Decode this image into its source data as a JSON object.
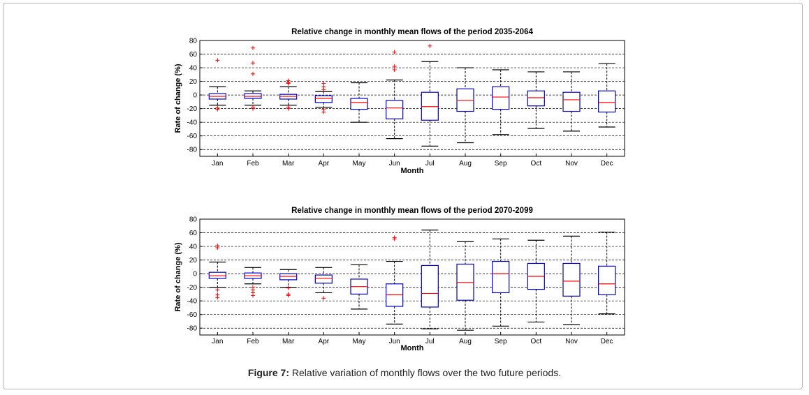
{
  "caption": {
    "label": "Figure 7:",
    "text": " Relative variation of monthly flows over the two future periods."
  },
  "colors": {
    "box": "#0000cc",
    "median": "#ff0000",
    "outlier": "#ff0000",
    "whisker": "#000000",
    "grid": "#000000"
  },
  "chart_data": [
    {
      "type": "box",
      "title": "Relative change in monthly mean flows of the period 2035-2064",
      "xlabel": "Month",
      "ylabel": "Rate of change (%)",
      "ylim": [
        -90,
        80
      ],
      "yticks": [
        -80,
        -60,
        -40,
        -20,
        0,
        20,
        40,
        60,
        80
      ],
      "grid": "dashed horizontal",
      "categories": [
        "Jan",
        "Feb",
        "Mar",
        "Apr",
        "May",
        "Jun",
        "Jul",
        "Aug",
        "Sep",
        "Oct",
        "Nov",
        "Dec"
      ],
      "boxes": [
        {
          "min": -15,
          "q1": -6,
          "median": -2,
          "q3": 2,
          "max": 12,
          "outliers": [
            51,
            -19,
            -21
          ]
        },
        {
          "min": -15,
          "q1": -5,
          "median": -2,
          "q3": 2,
          "max": 6,
          "outliers": [
            69,
            47,
            31,
            -18,
            -20
          ]
        },
        {
          "min": -15,
          "q1": -6,
          "median": -2,
          "q3": 1,
          "max": 12,
          "outliers": [
            21,
            17,
            18,
            -18,
            -20
          ]
        },
        {
          "min": -18,
          "q1": -11,
          "median": -5,
          "q3": -1,
          "max": 5,
          "outliers": [
            17,
            12,
            8,
            -21,
            -25
          ]
        },
        {
          "min": -40,
          "q1": -21,
          "median": -11,
          "q3": -5,
          "max": 18,
          "outliers": []
        },
        {
          "min": -64,
          "q1": -35,
          "median": -19,
          "q3": -8,
          "max": 22,
          "outliers": [
            63,
            42,
            37
          ]
        },
        {
          "min": -75,
          "q1": -37,
          "median": -17,
          "q3": 4,
          "max": 49,
          "outliers": [
            72
          ]
        },
        {
          "min": -70,
          "q1": -24,
          "median": -8,
          "q3": 9,
          "max": 40,
          "outliers": []
        },
        {
          "min": -58,
          "q1": -21,
          "median": -3,
          "q3": 12,
          "max": 37,
          "outliers": []
        },
        {
          "min": -49,
          "q1": -16,
          "median": -4,
          "q3": 6,
          "max": 34,
          "outliers": []
        },
        {
          "min": -53,
          "q1": -24,
          "median": -7,
          "q3": 4,
          "max": 34,
          "outliers": []
        },
        {
          "min": -47,
          "q1": -25,
          "median": -11,
          "q3": 6,
          "max": 46,
          "outliers": []
        }
      ]
    },
    {
      "type": "box",
      "title": "Relative change in monthly mean flows of the period 2070-2099",
      "xlabel": "Month",
      "ylabel": "Rate of change (%)",
      "ylim": [
        -90,
        80
      ],
      "yticks": [
        -80,
        -60,
        -40,
        -20,
        0,
        20,
        40,
        60,
        80
      ],
      "grid": "dashed horizontal",
      "categories": [
        "Jan",
        "Feb",
        "Mar",
        "Apr",
        "May",
        "Jun",
        "Jul",
        "Aug",
        "Sep",
        "Oct",
        "Nov",
        "Dec"
      ],
      "boxes": [
        {
          "min": -20,
          "q1": -7,
          "median": -3,
          "q3": 2,
          "max": 17,
          "outliers": [
            41,
            38,
            -24,
            -31,
            -35
          ]
        },
        {
          "min": -15,
          "q1": -7,
          "median": -3,
          "q3": 1,
          "max": 9,
          "outliers": [
            -20,
            -24,
            -28,
            -32
          ]
        },
        {
          "min": -20,
          "q1": -9,
          "median": -4,
          "q3": 0,
          "max": 6,
          "outliers": [
            -21,
            -30,
            -32
          ]
        },
        {
          "min": -28,
          "q1": -14,
          "median": -7,
          "q3": -2,
          "max": 9,
          "outliers": [
            -36
          ]
        },
        {
          "min": -52,
          "q1": -30,
          "median": -19,
          "q3": -8,
          "max": 13,
          "outliers": []
        },
        {
          "min": -74,
          "q1": -48,
          "median": -31,
          "q3": -15,
          "max": 18,
          "outliers": [
            53,
            51
          ]
        },
        {
          "min": -81,
          "q1": -49,
          "median": -29,
          "q3": 12,
          "max": 64,
          "outliers": []
        },
        {
          "min": -83,
          "q1": -39,
          "median": -13,
          "q3": 14,
          "max": 47,
          "outliers": []
        },
        {
          "min": -77,
          "q1": -28,
          "median": 0,
          "q3": 18,
          "max": 51,
          "outliers": []
        },
        {
          "min": -71,
          "q1": -23,
          "median": -4,
          "q3": 15,
          "max": 49,
          "outliers": []
        },
        {
          "min": -75,
          "q1": -33,
          "median": -11,
          "q3": 15,
          "max": 55,
          "outliers": []
        },
        {
          "min": -59,
          "q1": -31,
          "median": -15,
          "q3": 11,
          "max": 61,
          "outliers": []
        }
      ]
    }
  ]
}
